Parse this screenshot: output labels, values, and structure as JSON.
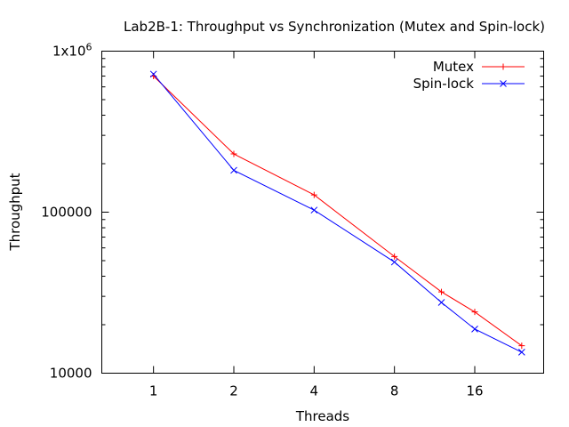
{
  "chart_data": {
    "type": "line",
    "title": "Lab2B-1: Throughput vs Synchronization (Mutex and Spin-lock)",
    "xlabel": "Threads",
    "ylabel": "Throughput",
    "x_scale": "log2",
    "y_scale": "log10",
    "xlim": [
      0.64,
      29
    ],
    "ylim": [
      10000,
      1000000
    ],
    "x_ticks": [
      1,
      2,
      4,
      8,
      16
    ],
    "x_tick_labels": [
      "1",
      "2",
      "4",
      "8",
      "16"
    ],
    "y_ticks": [
      10000,
      100000,
      1000000
    ],
    "y_tick_labels": [
      "10000",
      "100000",
      "1x10"
    ],
    "y_tick_superscript": "6",
    "legend_position": "top-right",
    "grid": false,
    "series": [
      {
        "name": "Mutex",
        "color": "#ff0000",
        "marker": "plus",
        "x": [
          1,
          2,
          4,
          8,
          12,
          16,
          24
        ],
        "y": [
          700000,
          230000,
          128000,
          53000,
          32000,
          24000,
          14800
        ]
      },
      {
        "name": "Spin-lock",
        "color": "#0000ff",
        "marker": "cross",
        "x": [
          1,
          2,
          4,
          8,
          12,
          16,
          24
        ],
        "y": [
          720000,
          182000,
          103000,
          49000,
          27500,
          18800,
          13500
        ]
      }
    ]
  }
}
